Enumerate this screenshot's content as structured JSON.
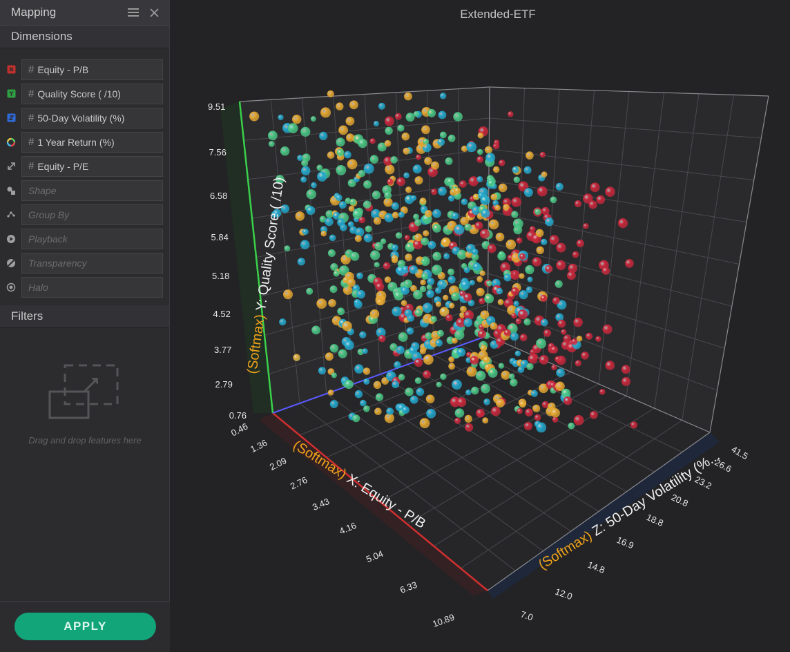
{
  "panel": {
    "title": "Mapping",
    "menu_icon": "hamburger-menu-icon",
    "close_icon": "close-icon"
  },
  "sections": {
    "dimensions": "Dimensions",
    "filters": "Filters"
  },
  "dimensions": [
    {
      "role": "x",
      "icon": "x-axis-icon",
      "color": "#c0302d",
      "label": "Equity - P/B",
      "filled": true
    },
    {
      "role": "y",
      "icon": "y-axis-icon",
      "color": "#2ea043",
      "label": "Quality Score ( /10)",
      "filled": true
    },
    {
      "role": "z",
      "icon": "z-axis-icon",
      "color": "#2f6bd8",
      "label": "50-Day Volatility (%)",
      "filled": true
    },
    {
      "role": "color",
      "icon": "color-wheel-icon",
      "color": "",
      "label": "1 Year Return (%)",
      "filled": true
    },
    {
      "role": "size",
      "icon": "resize-arrows-icon",
      "color": "",
      "label": "Equity - P/E",
      "filled": true
    },
    {
      "role": "shape",
      "icon": "shapes-icon",
      "color": "",
      "label": "Shape",
      "filled": false
    },
    {
      "role": "group",
      "icon": "group-by-icon",
      "color": "",
      "label": "Group By",
      "filled": false
    },
    {
      "role": "playback",
      "icon": "play-circle-icon",
      "color": "",
      "label": "Playback",
      "filled": false
    },
    {
      "role": "transparency",
      "icon": "transparency-icon",
      "color": "",
      "label": "Transparency",
      "filled": false
    },
    {
      "role": "halo",
      "icon": "halo-icon",
      "color": "",
      "label": "Halo",
      "filled": false
    }
  ],
  "filters": {
    "drop_hint": "Drag and drop features here"
  },
  "apply_label": "APPLY",
  "chart_data": {
    "type": "scatter",
    "title": "Extended-ETF",
    "axes": {
      "x": {
        "prefix": "(Softmax)",
        "label": "X: Equity - P/B",
        "ticks": [
          "0.46",
          "1.36",
          "2.09",
          "2.76",
          "3.43",
          "4.16",
          "5.04",
          "6.33",
          "10.89"
        ],
        "line_color": "#d22f2f"
      },
      "y": {
        "prefix": "(Softmax)",
        "label": "Y: Quality Score ( /10)",
        "ticks": [
          "0.76",
          "2.79",
          "3.77",
          "4.52",
          "5.18",
          "5.84",
          "6.58",
          "7.56",
          "9.51"
        ],
        "line_color": "#3ad04a"
      },
      "z": {
        "prefix": "(Softmax)",
        "label": "Z: 50-Day Volatility (%...",
        "ticks": [
          "7.0",
          "12.0",
          "14.8",
          "16.9",
          "18.8",
          "20.8",
          "23.2",
          "26.6",
          "41.5"
        ],
        "line_color": "#5a5aff"
      }
    },
    "series_colors": [
      "#c8283c",
      "#e5a832",
      "#24a8cc",
      "#4bc785"
    ],
    "grid": true
  }
}
